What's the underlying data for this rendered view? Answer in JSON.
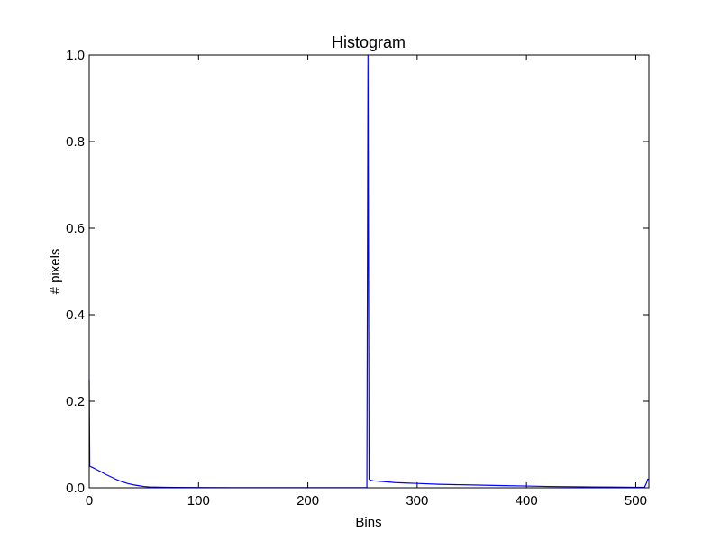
{
  "chart_data": {
    "type": "line",
    "title": "Histogram",
    "xlabel": "Bins",
    "ylabel": "# pixels",
    "xlim": [
      0,
      512
    ],
    "ylim": [
      0,
      1.0
    ],
    "x_ticks": [
      0,
      100,
      200,
      300,
      400,
      500
    ],
    "x_tick_labels": [
      "0",
      "100",
      "200",
      "300",
      "400",
      "500"
    ],
    "y_ticks": [
      0,
      0.2,
      0.4,
      0.6,
      0.8,
      1.0
    ],
    "y_tick_labels": [
      "0.0",
      "0.2",
      "0.4",
      "0.6",
      "0.8",
      "1.0"
    ],
    "grid": false,
    "series": [
      {
        "color": "#0000ff",
        "x": [
          0,
          0.5,
          1,
          3,
          6,
          10,
          15,
          20,
          25,
          30,
          35,
          40,
          45,
          50,
          55,
          60,
          70,
          80,
          100,
          150,
          200,
          250,
          254,
          255,
          256,
          257,
          258,
          260,
          265,
          270,
          280,
          290,
          300,
          320,
          340,
          360,
          380,
          400,
          420,
          440,
          460,
          480,
          500,
          508,
          510,
          511,
          512
        ],
        "y": [
          0.25,
          0.05,
          0.049,
          0.047,
          0.043,
          0.038,
          0.031,
          0.025,
          0.019,
          0.014,
          0.01,
          0.007,
          0.005,
          0.003,
          0.002,
          0.0015,
          0.001,
          0.0008,
          0.0005,
          0.0003,
          0.0002,
          0.0002,
          0.0002,
          1.0,
          0.02,
          0.018,
          0.017,
          0.016,
          0.015,
          0.014,
          0.012,
          0.011,
          0.01,
          0.008,
          0.007,
          0.006,
          0.005,
          0.004,
          0.003,
          0.0025,
          0.002,
          0.0015,
          0.001,
          0.001,
          0.012,
          0.02,
          0.019
        ]
      }
    ]
  }
}
